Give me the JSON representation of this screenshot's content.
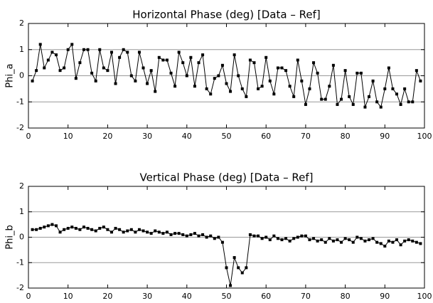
{
  "chart_data": [
    {
      "type": "line",
      "title": "Horizontal Phase (deg) [Data – Ref]",
      "y_label": "Phi_a",
      "xlim": [
        0,
        100
      ],
      "xticks": [
        0,
        10,
        20,
        30,
        40,
        50,
        60,
        70,
        80,
        90,
        100
      ],
      "ylim": [
        -2,
        2
      ],
      "yticks": [
        -2,
        -1,
        0,
        1,
        2
      ],
      "grid": true,
      "x": [
        1,
        2,
        3,
        4,
        5,
        6,
        7,
        8,
        9,
        10,
        11,
        12,
        13,
        14,
        15,
        16,
        17,
        18,
        19,
        20,
        21,
        22,
        23,
        24,
        25,
        26,
        27,
        28,
        29,
        30,
        31,
        32,
        33,
        34,
        35,
        36,
        37,
        38,
        39,
        40,
        41,
        42,
        43,
        44,
        45,
        46,
        47,
        48,
        49,
        50,
        51,
        52,
        53,
        54,
        55,
        56,
        57,
        58,
        59,
        60,
        61,
        62,
        63,
        64,
        65,
        66,
        67,
        68,
        69,
        70,
        71,
        72,
        73,
        74,
        75,
        76,
        77,
        78,
        79,
        80,
        81,
        82,
        83,
        84,
        85,
        86,
        87,
        88,
        89,
        90,
        91,
        92,
        93,
        94,
        95,
        96,
        97,
        98,
        99
      ],
      "series": [
        {
          "color": "#000000",
          "values": [
            -0.2,
            0.2,
            1.2,
            0.3,
            0.6,
            0.9,
            0.8,
            0.2,
            0.3,
            1.0,
            1.2,
            -0.1,
            0.5,
            1.0,
            1.0,
            0.1,
            -0.2,
            1.0,
            0.3,
            0.2,
            0.9,
            -0.3,
            0.7,
            1.0,
            0.9,
            0.0,
            -0.2,
            0.9,
            0.3,
            -0.3,
            0.2,
            -0.6,
            0.7,
            0.6,
            0.6,
            0.1,
            -0.4,
            0.9,
            0.5,
            0.0,
            0.7,
            -0.4,
            0.5,
            0.8,
            -0.5,
            -0.7,
            -0.1,
            0.0,
            0.4,
            -0.3,
            -0.6,
            0.8,
            0.0,
            -0.5,
            -0.8,
            0.6,
            0.5,
            -0.5,
            -0.4,
            0.7,
            -0.2,
            -0.7,
            0.3,
            0.3,
            0.2,
            -0.4,
            -0.8,
            0.6,
            -0.2,
            -1.1,
            -0.5,
            0.5,
            0.1,
            -0.9,
            -0.9,
            -0.4,
            0.4,
            -1.1,
            -0.9,
            0.2,
            -0.8,
            -1.1,
            0.1,
            0.1,
            -1.2,
            -0.8,
            -0.2,
            -1.0,
            -1.2,
            -0.5,
            0.3,
            -0.5,
            -0.7,
            -1.1,
            -0.5,
            -1.0,
            -1.0,
            0.2,
            -0.2
          ]
        }
      ]
    },
    {
      "type": "line",
      "title": "Vertical Phase (deg) [Data – Ref]",
      "y_label": "Phi_b",
      "xlim": [
        0,
        100
      ],
      "xticks": [
        0,
        10,
        20,
        30,
        40,
        50,
        60,
        70,
        80,
        90,
        100
      ],
      "ylim": [
        -2,
        2
      ],
      "yticks": [
        -2,
        -1,
        0,
        1,
        2
      ],
      "grid": true,
      "x": [
        1,
        2,
        3,
        4,
        5,
        6,
        7,
        8,
        9,
        10,
        11,
        12,
        13,
        14,
        15,
        16,
        17,
        18,
        19,
        20,
        21,
        22,
        23,
        24,
        25,
        26,
        27,
        28,
        29,
        30,
        31,
        32,
        33,
        34,
        35,
        36,
        37,
        38,
        39,
        40,
        41,
        42,
        43,
        44,
        45,
        46,
        47,
        48,
        49,
        50,
        51,
        52,
        53,
        54,
        55,
        56,
        57,
        58,
        59,
        60,
        61,
        62,
        63,
        64,
        65,
        66,
        67,
        68,
        69,
        70,
        71,
        72,
        73,
        74,
        75,
        76,
        77,
        78,
        79,
        80,
        81,
        82,
        83,
        84,
        85,
        86,
        87,
        88,
        89,
        90,
        91,
        92,
        93,
        94,
        95,
        96,
        97,
        98,
        99
      ],
      "series": [
        {
          "color": "#000000",
          "values": [
            0.3,
            0.3,
            0.35,
            0.4,
            0.45,
            0.5,
            0.45,
            0.2,
            0.3,
            0.35,
            0.4,
            0.35,
            0.3,
            0.4,
            0.35,
            0.3,
            0.25,
            0.35,
            0.4,
            0.3,
            0.2,
            0.35,
            0.3,
            0.2,
            0.25,
            0.3,
            0.2,
            0.3,
            0.25,
            0.2,
            0.15,
            0.25,
            0.2,
            0.15,
            0.2,
            0.1,
            0.15,
            0.15,
            0.1,
            0.05,
            0.1,
            0.15,
            0.05,
            0.1,
            0.0,
            0.05,
            -0.05,
            0.0,
            -0.2,
            -1.2,
            -1.9,
            -0.8,
            -1.2,
            -1.4,
            -1.2,
            0.1,
            0.05,
            0.05,
            -0.05,
            0.0,
            -0.1,
            0.05,
            -0.05,
            -0.1,
            -0.05,
            -0.15,
            -0.05,
            0.0,
            0.05,
            0.05,
            -0.1,
            -0.05,
            -0.15,
            -0.1,
            -0.2,
            -0.05,
            -0.15,
            -0.1,
            -0.2,
            -0.05,
            -0.1,
            -0.2,
            0.0,
            -0.05,
            -0.15,
            -0.1,
            -0.05,
            -0.2,
            -0.25,
            -0.35,
            -0.15,
            -0.2,
            -0.1,
            -0.3,
            -0.15,
            -0.1,
            -0.15,
            -0.2,
            -0.25
          ]
        }
      ]
    }
  ]
}
